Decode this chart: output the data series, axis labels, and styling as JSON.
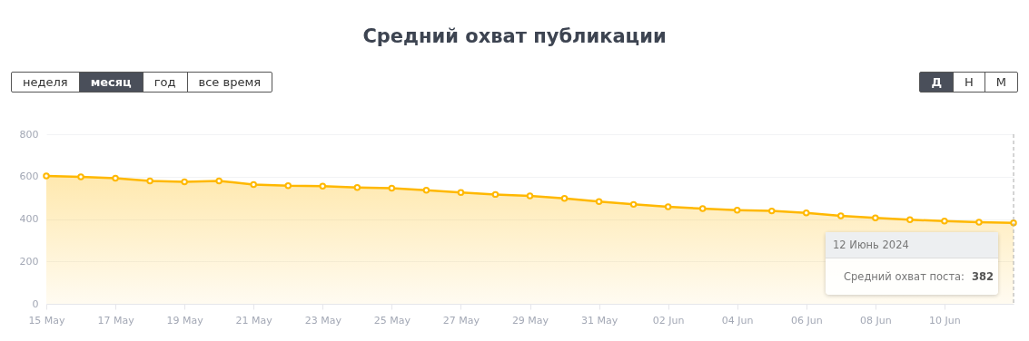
{
  "chart_data": {
    "type": "area",
    "title": "Средний охват публикации",
    "x": [
      "2024-05-15",
      "2024-05-16",
      "2024-05-17",
      "2024-05-18",
      "2024-05-19",
      "2024-05-20",
      "2024-05-21",
      "2024-05-22",
      "2024-05-23",
      "2024-05-24",
      "2024-05-25",
      "2024-05-26",
      "2024-05-27",
      "2024-05-28",
      "2024-05-29",
      "2024-05-30",
      "2024-05-31",
      "2024-06-01",
      "2024-06-02",
      "2024-06-03",
      "2024-06-04",
      "2024-06-05",
      "2024-06-06",
      "2024-06-07",
      "2024-06-08",
      "2024-06-09",
      "2024-06-10",
      "2024-06-11",
      "2024-06-12"
    ],
    "series": [
      {
        "name": "Средний охват поста:",
        "color": "#ffb800",
        "values": [
          603,
          599,
          593,
          580,
          575,
          580,
          563,
          557,
          555,
          549,
          545,
          536,
          525,
          516,
          509,
          497,
          482,
          469,
          458,
          449,
          442,
          438,
          429,
          415,
          405,
          397,
          390,
          385,
          382
        ]
      }
    ],
    "xlim": [
      "2024-05-15",
      "2024-06-12"
    ],
    "xticks": [
      {
        "value": "2024-05-15",
        "label": "15 May"
      },
      {
        "value": "2024-05-17",
        "label": "17 May"
      },
      {
        "value": "2024-05-19",
        "label": "19 May"
      },
      {
        "value": "2024-05-21",
        "label": "21 May"
      },
      {
        "value": "2024-05-23",
        "label": "23 May"
      },
      {
        "value": "2024-05-25",
        "label": "25 May"
      },
      {
        "value": "2024-05-27",
        "label": "27 May"
      },
      {
        "value": "2024-05-29",
        "label": "29 May"
      },
      {
        "value": "2024-05-31",
        "label": "31 May"
      },
      {
        "value": "2024-06-02",
        "label": "02 Jun"
      },
      {
        "value": "2024-06-04",
        "label": "04 Jun"
      },
      {
        "value": "2024-06-06",
        "label": "06 Jun"
      },
      {
        "value": "2024-06-08",
        "label": "08 Jun"
      },
      {
        "value": "2024-06-10",
        "label": "10 Jun"
      }
    ],
    "ylim": [
      0,
      800
    ],
    "yticks": [
      0,
      200,
      400,
      600,
      800
    ],
    "grid": "y",
    "marker": "circle",
    "ref_lines": [
      {
        "axis": "x",
        "value": "2024-06-12",
        "color": "#aaaaaa",
        "line_style": "dashed"
      }
    ],
    "annotations": [
      "12 Июнь 2024",
      "382",
      "неделя",
      "месяц",
      "год",
      "все время",
      "Д",
      "Н",
      "М"
    ]
  }
}
